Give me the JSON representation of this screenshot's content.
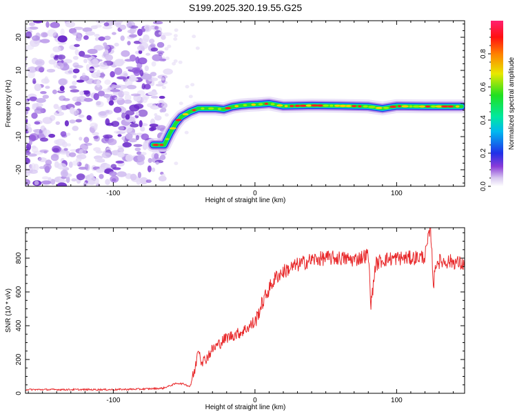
{
  "title": "S199.2025.320.19.55.G25",
  "colors": {
    "snr_line": "#e8282a",
    "axis": "#000000"
  },
  "chart_data": [
    {
      "type": "heatmap",
      "name": "spectrogram",
      "xlabel": "Height of straight line (km)",
      "ylabel": "Frequency (Hz)",
      "xlim": [
        -162,
        148
      ],
      "ylim": [
        -25,
        25
      ],
      "xticks": [
        -100,
        0,
        100
      ],
      "yticks": [
        -20,
        -10,
        0,
        10,
        20
      ],
      "colorbar": {
        "label": "Normalized spectral amplitude",
        "range": [
          0,
          1
        ],
        "ticks": [
          "0.0",
          "0.2",
          "0.4",
          "0.6",
          "0.8"
        ],
        "tick_values": [
          0.0,
          0.2,
          0.4,
          0.6,
          0.8
        ]
      },
      "noise_region_x": [
        -162,
        -68
      ],
      "ridge": {
        "x": [
          -72,
          -64,
          -60,
          -56,
          -52,
          -46,
          -40,
          -34,
          -28,
          -22,
          -16,
          -10,
          -4,
          2,
          10,
          20,
          40,
          60,
          80,
          90,
          100,
          120,
          140,
          146
        ],
        "freq": [
          -12.5,
          -12.5,
          -9,
          -6,
          -4,
          -2.5,
          -1.5,
          -1.5,
          -1.5,
          -1.8,
          -1,
          -0.6,
          -0.4,
          -0.3,
          0,
          -0.8,
          -0.6,
          -0.7,
          -0.9,
          -1.5,
          -0.8,
          -0.9,
          -0.9,
          -0.9
        ]
      }
    },
    {
      "type": "line",
      "name": "snr",
      "xlabel": "Height of straight line (km)",
      "ylabel": "SNR (10 * v/v)",
      "xlim": [
        -162,
        148
      ],
      "ylim": [
        0,
        980
      ],
      "xticks": [
        -100,
        0,
        100
      ],
      "yticks": [
        0,
        200,
        400,
        600,
        800
      ],
      "series": [
        {
          "name": "SNR",
          "x": [
            -162,
            -140,
            -120,
            -100,
            -80,
            -65,
            -55,
            -50,
            -46,
            -42,
            -40,
            -38,
            -36,
            -30,
            -20,
            -10,
            0,
            5,
            10,
            15,
            20,
            30,
            40,
            50,
            60,
            70,
            80,
            82,
            85,
            90,
            100,
            110,
            120,
            124,
            126,
            128,
            132,
            140,
            148
          ],
          "y": [
            22,
            22,
            22,
            22,
            25,
            30,
            60,
            55,
            40,
            150,
            280,
            200,
            190,
            260,
            330,
            360,
            420,
            530,
            620,
            690,
            720,
            760,
            790,
            800,
            800,
            790,
            820,
            520,
            760,
            790,
            800,
            800,
            810,
            980,
            640,
            780,
            780,
            780,
            760
          ]
        }
      ]
    }
  ]
}
